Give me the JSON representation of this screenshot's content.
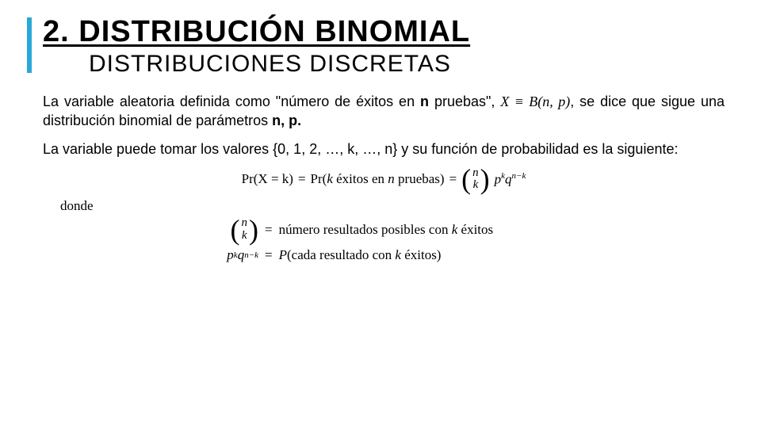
{
  "header": {
    "main_title": "2. DISTRIBUCIÓN BINOMIAL",
    "sub_title": "DISTRIBUCIONES DISCRETAS"
  },
  "para1": {
    "t1": "La variable aleatoria definida como \"número de éxitos en ",
    "n_bold": "n",
    "t2": " pruebas\", ",
    "math": "X ≡ B(n, p)",
    "t3": ", se dice que sigue una distribución binomial de parámetros ",
    "np_bold": "n, p.",
    "t4": ""
  },
  "para2": {
    "t1": "La variable puede tomar los valores {0, 1, 2, …, k, …, n} y su función de probabilidad es la siguiente:"
  },
  "formula": {
    "lhs": "Pr(X = k)",
    "mid_pre": "Pr(",
    "mid_k": "k",
    "mid_txt1": " éxitos en ",
    "mid_n": "n",
    "mid_txt2": " pruebas)",
    "binom_top": "n",
    "binom_bot": "k",
    "rhs_pk": "p",
    "rhs_k": "k",
    "rhs_q": "q",
    "rhs_nk": "n−k"
  },
  "donde": "donde",
  "def1": {
    "binom_top": "n",
    "binom_bot": "k",
    "eq": " = ",
    "txt1": "número resultados posibles con ",
    "k": "k",
    "txt2": " éxitos"
  },
  "def2": {
    "p": "p",
    "k": "k",
    "q": "q",
    "nk": "n−k",
    "eq": " = ",
    "Ppre": "P",
    "txt1": "(cada resultado con ",
    "kk": "k",
    "txt2": " éxitos)"
  },
  "colors": {
    "accent": "#2aa8d8",
    "text": "#000000",
    "background": "#ffffff"
  },
  "typography": {
    "title_fontsize": 38,
    "subtitle_fontsize": 30,
    "body_fontsize": 18,
    "formula_fontsize": 17
  }
}
